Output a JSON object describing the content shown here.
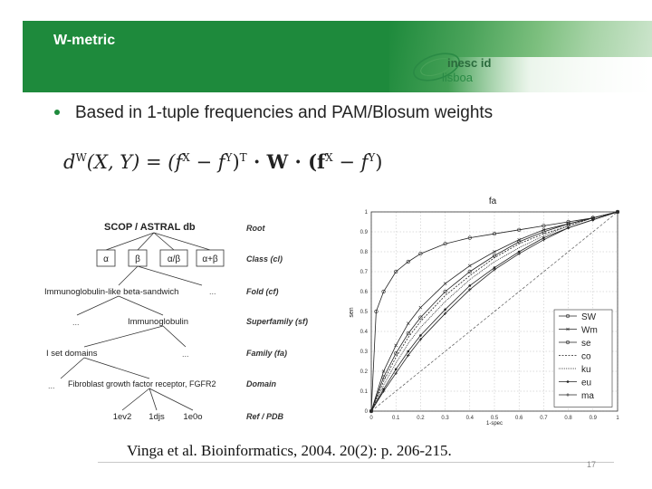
{
  "slide": {
    "title": "W-metric",
    "logo_text_top": "inesc id",
    "logo_text_bottom": "lisboa",
    "bullet": "Based in 1-tuple frequencies and PAM/Blosum weights",
    "citation": "Vinga et al. Bioinformatics, 2004. 20(2): p. 206-215.",
    "page_number": "17",
    "accent_color": "#1e8a3c"
  },
  "formula": {
    "parts": [
      "d",
      "W",
      "(X, Y) = (f",
      "X",
      " − f",
      "Y",
      ")",
      "T",
      " · W · (f",
      "X",
      " − f",
      "Y",
      ")"
    ]
  },
  "hierarchy": {
    "title": "SCOP / ASTRAL db",
    "classes": [
      "α",
      "β",
      "α/β",
      "α+β"
    ],
    "levels": [
      "Root",
      "Class (cl)",
      "Fold (cf)",
      "Superfamily (sf)",
      "Family (fa)",
      "Domain",
      "Ref / PDB"
    ],
    "fold": "Immunoglobulin-like beta-sandwich",
    "superfamily": "Immunoglobulin",
    "family": "I set domains",
    "domain": "Fibroblast growth factor receptor, FGFR2",
    "refs": [
      "1ev2",
      "1djs",
      "1e0o"
    ],
    "ellipsis": "..."
  },
  "chart_data": {
    "type": "line",
    "title": "fa",
    "xlabel": "1-spec",
    "ylabel": "sen",
    "xlim": [
      0,
      1
    ],
    "ylim": [
      0,
      1
    ],
    "xticks": [
      "0",
      "0.1",
      "0.2",
      "0.3",
      "0.4",
      "0.5",
      "0.6",
      "0.7",
      "0.8",
      "0.9",
      "1"
    ],
    "yticks": [
      "0",
      "0.1",
      "0.2",
      "0.3",
      "0.4",
      "0.5",
      "0.6",
      "0.7",
      "0.8",
      "0.9",
      "1"
    ],
    "legend_position": "bottom-right",
    "series": [
      {
        "name": "SW",
        "x": [
          0,
          0.02,
          0.05,
          0.1,
          0.15,
          0.2,
          0.3,
          0.4,
          0.5,
          0.6,
          0.7,
          0.8,
          0.9,
          1
        ],
        "y": [
          0,
          0.5,
          0.6,
          0.7,
          0.75,
          0.79,
          0.84,
          0.87,
          0.89,
          0.91,
          0.93,
          0.95,
          0.97,
          1
        ]
      },
      {
        "name": "Wm",
        "x": [
          0,
          0.05,
          0.1,
          0.15,
          0.2,
          0.3,
          0.4,
          0.5,
          0.6,
          0.7,
          0.8,
          0.9,
          1
        ],
        "y": [
          0,
          0.2,
          0.33,
          0.44,
          0.52,
          0.64,
          0.73,
          0.8,
          0.86,
          0.91,
          0.94,
          0.97,
          1
        ]
      },
      {
        "name": "se",
        "x": [
          0,
          0.05,
          0.1,
          0.15,
          0.2,
          0.3,
          0.4,
          0.5,
          0.6,
          0.7,
          0.8,
          0.9,
          1
        ],
        "y": [
          0,
          0.17,
          0.29,
          0.39,
          0.47,
          0.6,
          0.7,
          0.78,
          0.85,
          0.9,
          0.94,
          0.97,
          1
        ]
      },
      {
        "name": "co",
        "x": [
          0,
          0.05,
          0.1,
          0.15,
          0.2,
          0.3,
          0.4,
          0.5,
          0.6,
          0.7,
          0.8,
          0.9,
          1
        ],
        "y": [
          0,
          0.15,
          0.27,
          0.37,
          0.45,
          0.58,
          0.68,
          0.77,
          0.84,
          0.89,
          0.93,
          0.97,
          1
        ]
      },
      {
        "name": "ku",
        "x": [
          0,
          0.05,
          0.1,
          0.15,
          0.2,
          0.3,
          0.4,
          0.5,
          0.6,
          0.7,
          0.8,
          0.9,
          1
        ],
        "y": [
          0,
          0.13,
          0.24,
          0.34,
          0.42,
          0.55,
          0.66,
          0.75,
          0.82,
          0.88,
          0.93,
          0.97,
          1
        ]
      },
      {
        "name": "eu",
        "x": [
          0,
          0.05,
          0.1,
          0.15,
          0.2,
          0.3,
          0.4,
          0.5,
          0.6,
          0.7,
          0.8,
          0.9,
          1
        ],
        "y": [
          0,
          0.11,
          0.21,
          0.3,
          0.38,
          0.51,
          0.63,
          0.72,
          0.8,
          0.87,
          0.92,
          0.96,
          1
        ]
      },
      {
        "name": "ma",
        "x": [
          0,
          0.05,
          0.1,
          0.15,
          0.2,
          0.3,
          0.4,
          0.5,
          0.6,
          0.7,
          0.8,
          0.9,
          1
        ],
        "y": [
          0,
          0.1,
          0.19,
          0.28,
          0.36,
          0.49,
          0.61,
          0.71,
          0.79,
          0.86,
          0.92,
          0.96,
          1
        ]
      }
    ],
    "reference_line": {
      "x": [
        0,
        1
      ],
      "y": [
        0,
        1
      ]
    }
  }
}
